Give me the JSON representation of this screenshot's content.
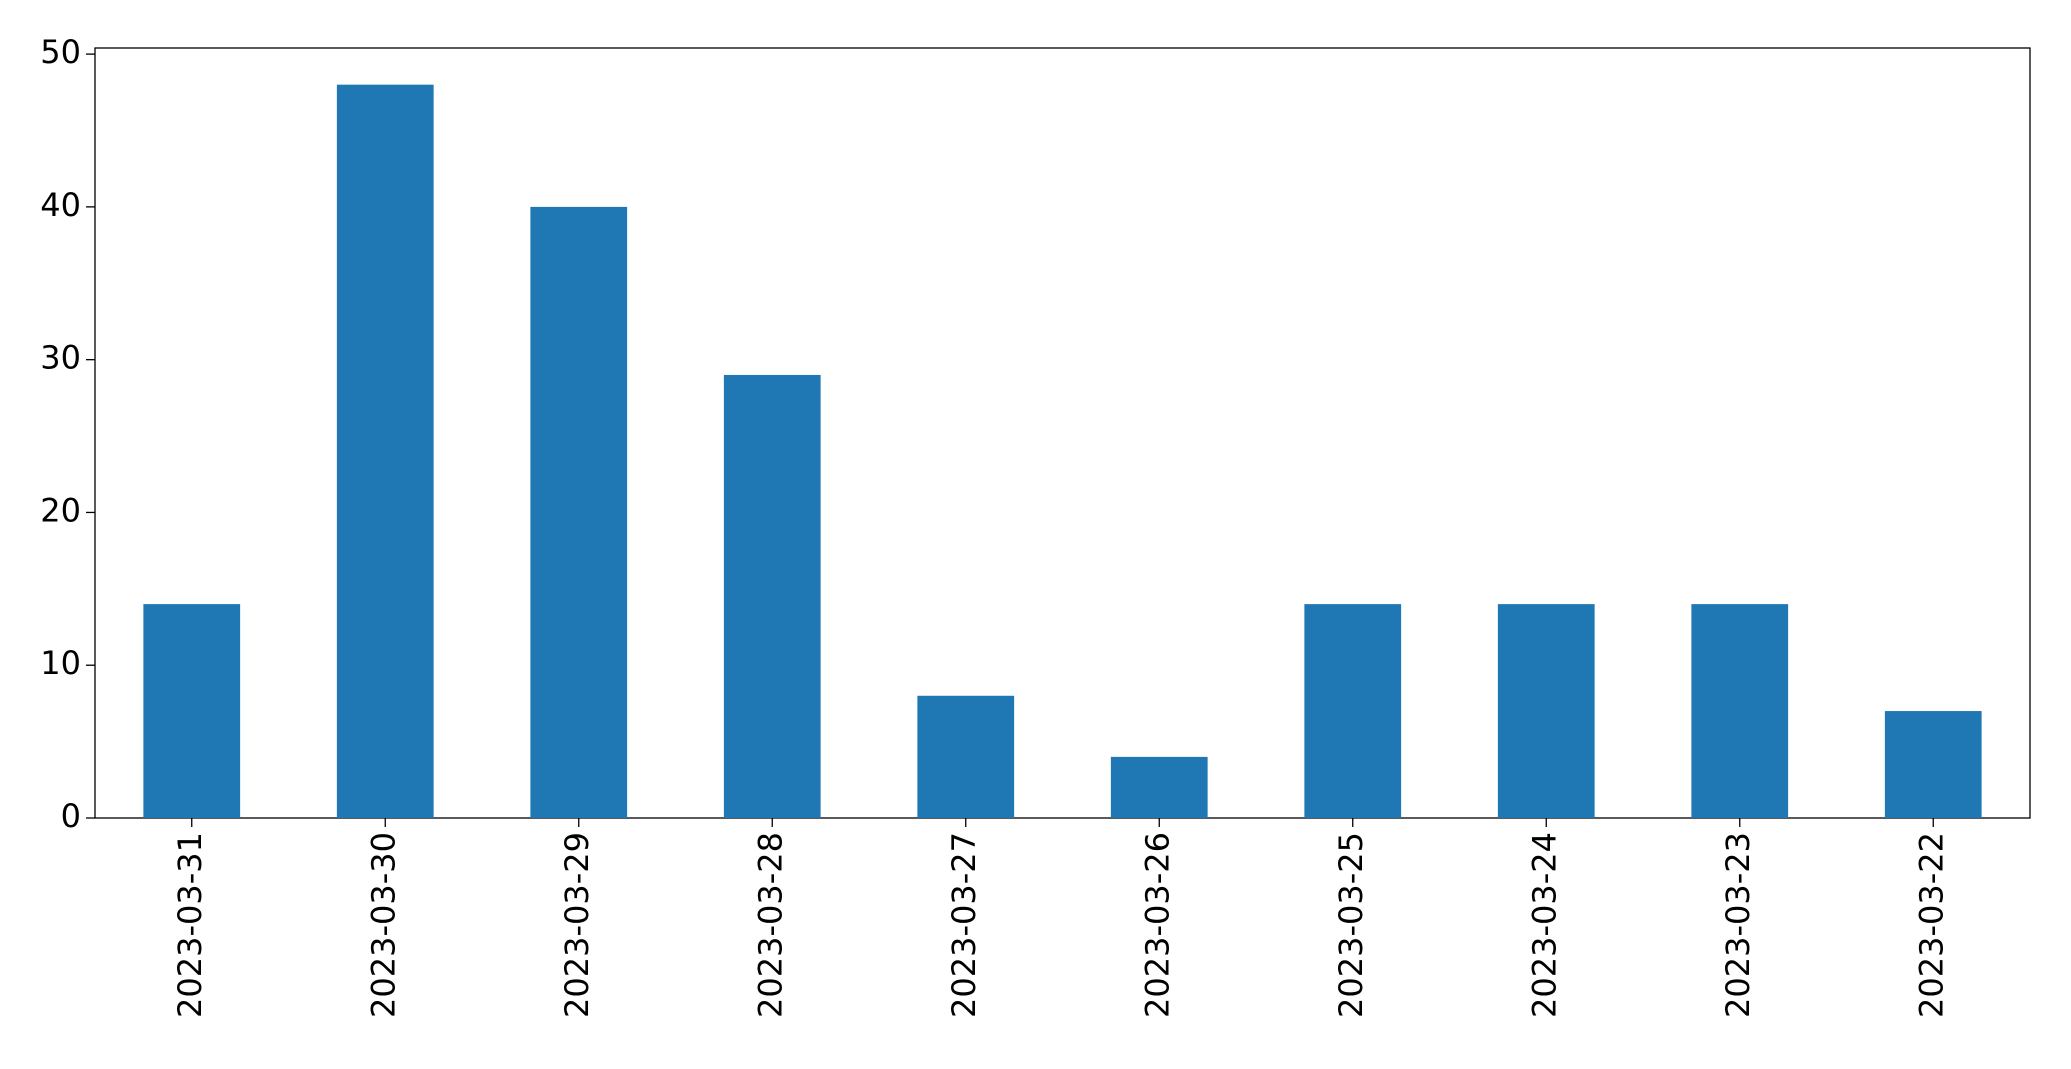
{
  "chart_data": {
    "type": "bar",
    "categories": [
      "2023-03-31",
      "2023-03-30",
      "2023-03-29",
      "2023-03-28",
      "2023-03-27",
      "2023-03-26",
      "2023-03-25",
      "2023-03-24",
      "2023-03-23",
      "2023-03-22"
    ],
    "values": [
      14,
      48,
      40,
      29,
      8,
      4,
      14,
      14,
      14,
      7
    ],
    "color": "#1f77b4",
    "ylim": [
      0,
      50.4
    ],
    "yticks": [
      0,
      10,
      20,
      30,
      40,
      50
    ],
    "grid": false
  }
}
